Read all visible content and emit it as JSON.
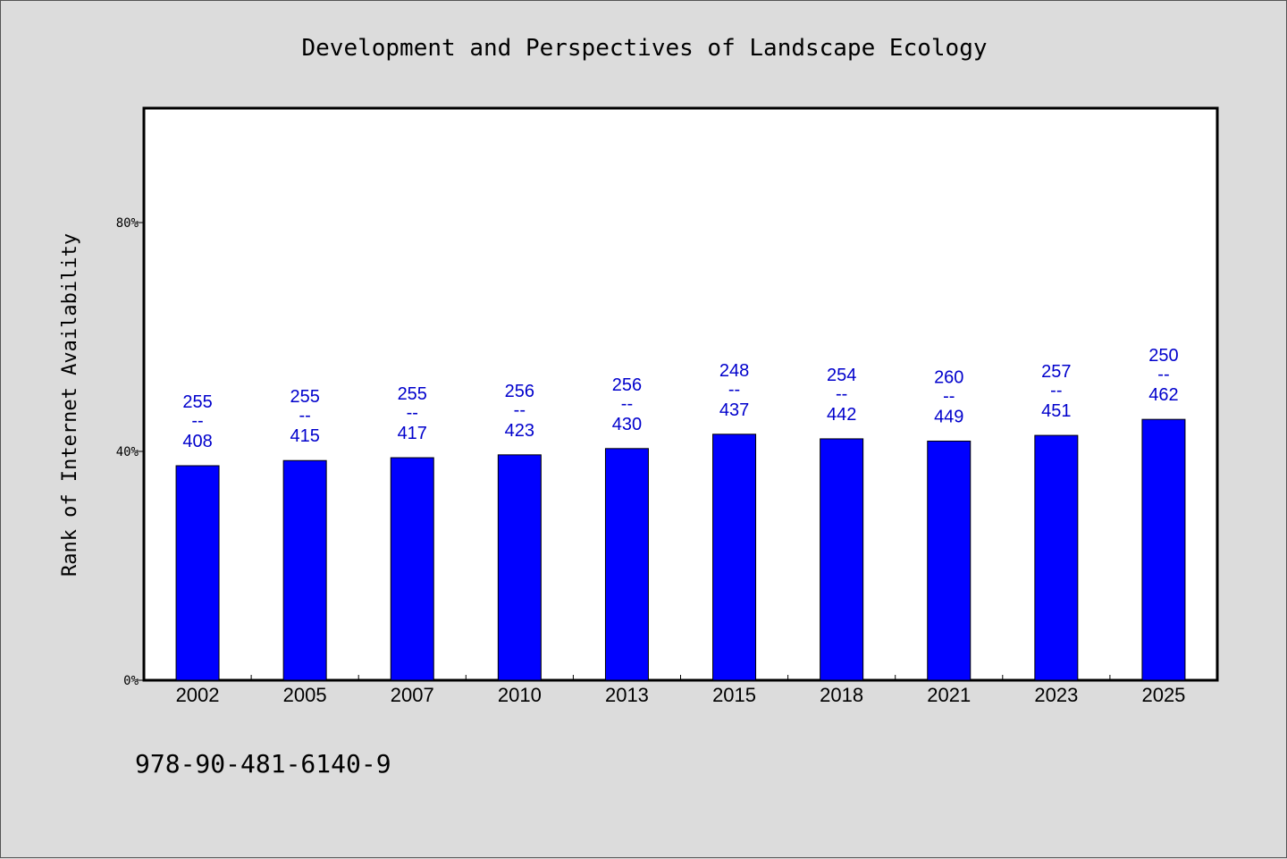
{
  "chart_data": {
    "type": "bar",
    "title": "Development and Perspectives of Landscape Ecology",
    "xlabel": "",
    "ylabel": "Rank of Internet Availability",
    "ylim": [
      0,
      100
    ],
    "yticks": [
      0,
      40,
      80
    ],
    "ytick_labels": [
      "0%",
      "40%",
      "80%"
    ],
    "grid": false,
    "categories": [
      "2002",
      "2005",
      "2007",
      "2010",
      "2013",
      "2015",
      "2018",
      "2021",
      "2023",
      "2025"
    ],
    "values": [
      37.5,
      38.4,
      38.9,
      39.4,
      40.5,
      43.0,
      42.2,
      41.8,
      42.8,
      45.6
    ],
    "labels_top": [
      "255",
      "255",
      "255",
      "256",
      "256",
      "248",
      "254",
      "260",
      "257",
      "250"
    ],
    "labels_sep": "--",
    "labels_bottom": [
      "408",
      "415",
      "417",
      "423",
      "430",
      "437",
      "442",
      "449",
      "451",
      "462"
    ],
    "bar_color": "#0000ff",
    "label_color": "#0000cc"
  },
  "footer": {
    "text": "978-90-481-6140-9"
  }
}
